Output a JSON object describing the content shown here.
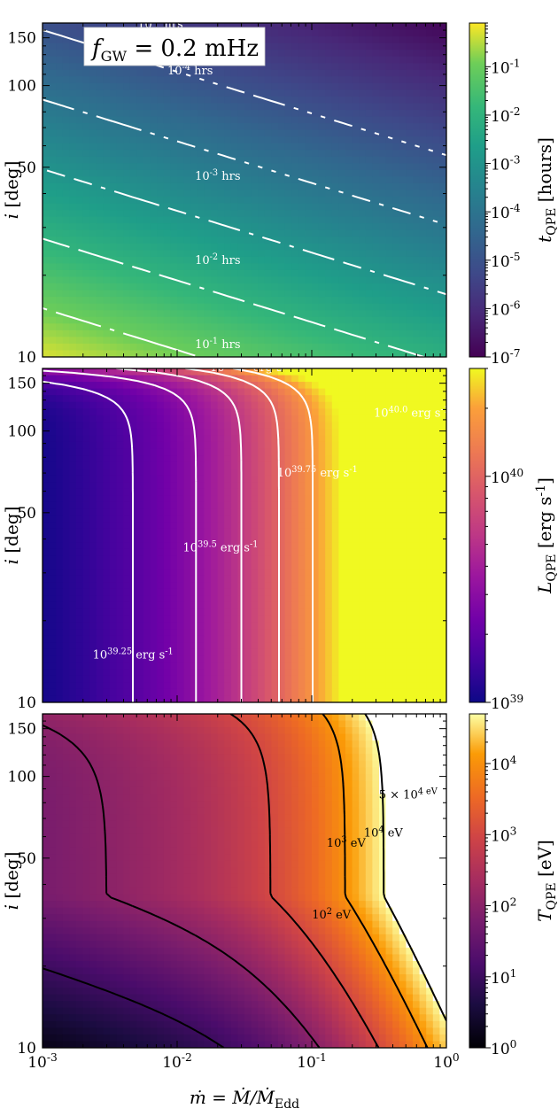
{
  "figure": {
    "xlabel": "ṁ = Ṁ/Ṁ_Edd",
    "annotation": "f_GW = 0.2 mHz"
  },
  "chart_data": [
    {
      "type": "heatmap",
      "title": "",
      "xlabel": "",
      "ylabel": "i [deg]",
      "xscale": "log",
      "yscale": "log",
      "xlim": [
        0.001,
        1
      ],
      "ylim": [
        10,
        170
      ],
      "xticks": [
        "10^-3",
        "10^-2",
        "10^-1",
        "10^0"
      ],
      "yticks": [
        10,
        50,
        100,
        150
      ],
      "show_x_tick_labels": false,
      "colormap": "viridis",
      "cbar_label": "t_QPE [hours]",
      "cbar_scale": "log",
      "cbar_range": [
        1e-07,
        0.8
      ],
      "cbar_ticks": [
        "10^-1",
        "10^-2",
        "10^-3",
        "10^-4",
        "10^-5",
        "10^-6",
        "10^-7"
      ],
      "field": "t",
      "contour_color": "#ffffff",
      "contours": [
        {
          "level": 1e-05,
          "label": "10^-5 hrs",
          "label_at": [
            0.0075,
            163
          ]
        },
        {
          "level": 0.0001,
          "label": "10^-4 hrs",
          "label_at": [
            0.0125,
            110
          ]
        },
        {
          "level": 0.001,
          "label": "10^-3 hrs",
          "label_at": [
            0.02,
            45
          ]
        },
        {
          "level": 0.01,
          "label": "10^-2 hrs",
          "label_at": [
            0.02,
            22
          ]
        },
        {
          "level": 0.1,
          "label": "10^-1 hrs",
          "label_at": [
            0.02,
            10.8
          ]
        }
      ]
    },
    {
      "type": "heatmap",
      "title": "",
      "xlabel": "",
      "ylabel": "i [deg]",
      "xscale": "log",
      "yscale": "log",
      "xlim": [
        0.001,
        1
      ],
      "ylim": [
        10,
        170
      ],
      "xticks": [
        "10^-3",
        "10^-2",
        "10^-1",
        "10^0"
      ],
      "yticks": [
        10,
        50,
        100,
        150
      ],
      "show_x_tick_labels": false,
      "colormap": "plasma",
      "cbar_label": "L_QPE [erg s^-1]",
      "cbar_scale": "log",
      "cbar_range": [
        1e+39,
        3e+40
      ],
      "cbar_ticks": [
        "10^40",
        "10^39"
      ],
      "field": "L",
      "contour_color": "#ffffff",
      "contours": [
        {
          "level": 1.778e+39,
          "label": "10^39.25 erg s^-1",
          "label_at": [
            0.0047,
            14.5
          ]
        },
        {
          "level": 3.162e+39,
          "label": "10^39.5 erg s^-1",
          "label_at": [
            0.021,
            36
          ]
        },
        {
          "level": 5.623e+39,
          "label": "10^39.75 erg s^-1",
          "label_at": [
            0.11,
            68
          ]
        },
        {
          "level": 1e+40,
          "label": "10^40.0 erg s^-1",
          "label_at": [
            0.55,
            113
          ]
        },
        {
          "level": 1.778e+40,
          "label": "10^40.25 erg s^-1",
          "label_at": [
            0.035,
            166
          ]
        }
      ]
    },
    {
      "type": "heatmap",
      "title": "",
      "xlabel": "ṁ = Ṁ/Ṁ_Edd",
      "ylabel": "i [deg]",
      "xscale": "log",
      "yscale": "log",
      "xlim": [
        0.001,
        1
      ],
      "ylim": [
        10,
        170
      ],
      "xticks": [
        "10^-3",
        "10^-2",
        "10^-1",
        "10^0"
      ],
      "yticks": [
        10,
        50,
        100,
        150
      ],
      "show_x_tick_labels": true,
      "colormap": "inferno",
      "cbar_label": "T_QPE [eV]",
      "cbar_scale": "log",
      "cbar_range": [
        1,
        50000
      ],
      "cbar_ticks": [
        "10^4",
        "10^3",
        "10^2",
        "10^1",
        "10^0"
      ],
      "field": "T",
      "contour_color": "#000000",
      "white_above": 50000,
      "contours": [
        {
          "level": 10,
          "label": "",
          "label_at": null
        },
        {
          "level": 100,
          "label": "10^2 eV",
          "label_at": [
            0.14,
            30
          ]
        },
        {
          "level": 1000,
          "label": "10^3 eV",
          "label_at": [
            0.18,
            55
          ]
        },
        {
          "level": 10000,
          "label": "10^4 eV",
          "label_at": [
            0.34,
            60
          ]
        },
        {
          "level": 50000,
          "label": "5 × 10^4 eV",
          "label_at": [
            0.52,
            83
          ]
        }
      ]
    }
  ]
}
